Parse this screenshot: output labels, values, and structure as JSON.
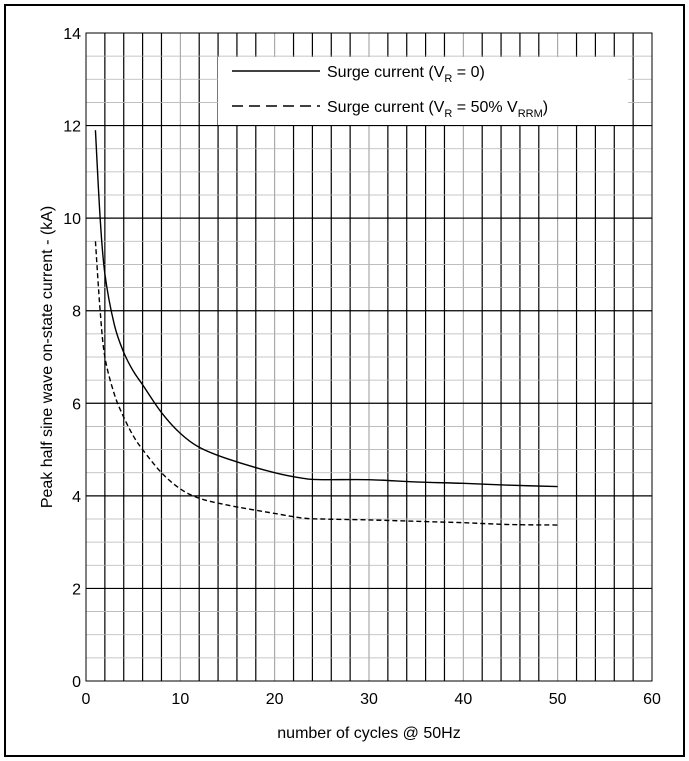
{
  "chart_data": {
    "type": "line",
    "title": "",
    "xlabel": "number of cycles @ 50Hz",
    "ylabel": "Peak half sine wave on-state current - (kA)",
    "xlim": [
      0,
      60
    ],
    "ylim": [
      0,
      14
    ],
    "x_ticks": [
      "0",
      "10",
      "20",
      "30",
      "40",
      "50",
      "60"
    ],
    "y_ticks": [
      "0",
      "2",
      "4",
      "6",
      "8",
      "10",
      "12",
      "14"
    ],
    "grid": true,
    "legend_position": "top-right",
    "series": [
      {
        "name": "Surge current (VR = 0)",
        "legend_main": "Surge current (V",
        "legend_sub": "R",
        "legend_tail": " = 0)",
        "style": "solid",
        "color": "#000000",
        "x": [
          1,
          1.5,
          2,
          3,
          4,
          5,
          6,
          8,
          10,
          12,
          15,
          20,
          23,
          25,
          30,
          35,
          40,
          45,
          50
        ],
        "y": [
          11.9,
          10.0,
          8.8,
          7.7,
          7.1,
          6.7,
          6.4,
          5.8,
          5.35,
          5.05,
          4.8,
          4.5,
          4.38,
          4.35,
          4.35,
          4.3,
          4.27,
          4.23,
          4.2
        ]
      },
      {
        "name": "Surge current (VR = 50% VRRM)",
        "legend_main": "Surge current (V",
        "legend_sub": "R",
        "legend_tail": " = 50% V",
        "legend_sub2": "RRM",
        "legend_tail2": ")",
        "style": "dashed",
        "color": "#000000",
        "x": [
          1,
          1.5,
          2,
          3,
          4,
          5,
          6,
          8,
          10,
          12,
          15,
          20,
          23,
          25,
          30,
          35,
          40,
          45,
          50
        ],
        "y": [
          9.5,
          8.0,
          7.0,
          6.2,
          5.7,
          5.3,
          5.0,
          4.5,
          4.15,
          3.95,
          3.8,
          3.62,
          3.52,
          3.5,
          3.48,
          3.45,
          3.42,
          3.38,
          3.37
        ]
      }
    ]
  }
}
